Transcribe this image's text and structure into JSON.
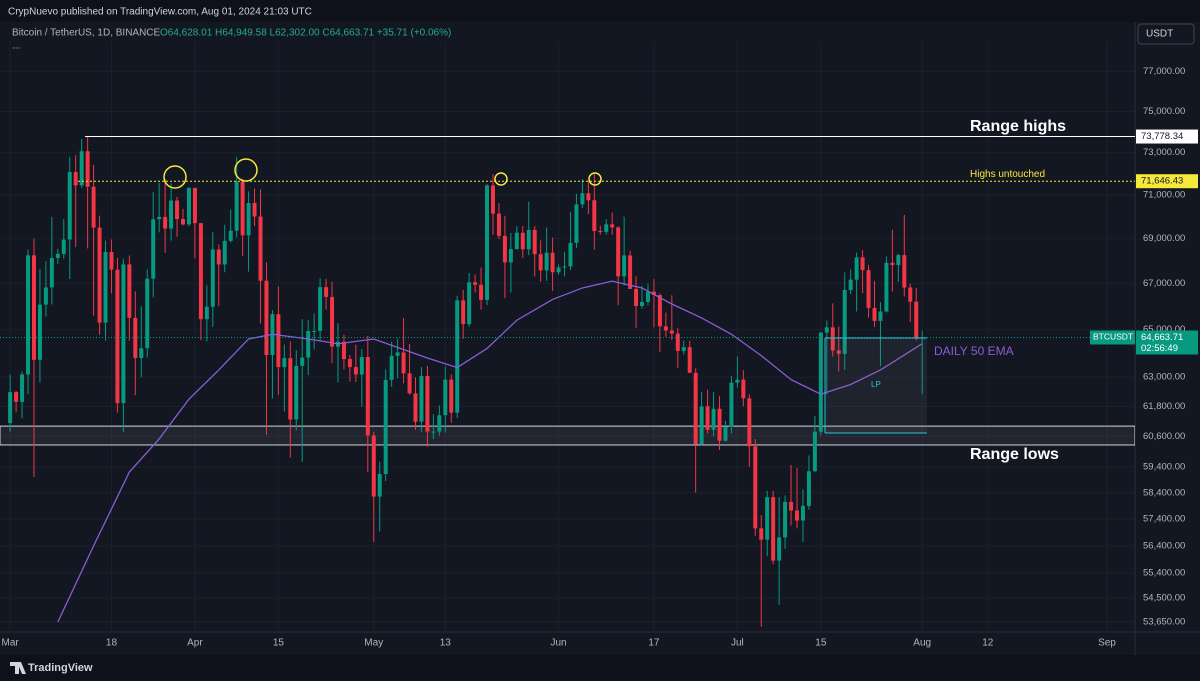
{
  "header": {
    "publisher": "CrypNuevo published on TradingView.com, Aug 01, 2024 21:03 UTC",
    "logo": "TradingView"
  },
  "chart_data": {
    "type": "candlestick",
    "title": "Bitcoin / TetherUS, 1D, BINANCE",
    "ohlc_legend": "O64,628.01 H64,949.58 L62,302.00 C64,663.71 +35.71 (+0.06%)",
    "more": "...",
    "currency": "USDT",
    "up_color": "#089981",
    "down_color": "#f23645",
    "log_scale": true,
    "ylim": [
      53300,
      78500
    ],
    "xlim": [
      -1.7,
      188.7
    ],
    "yticks": [
      {
        "value": 77000,
        "label": "77,000.00"
      },
      {
        "value": 75000,
        "label": "75,000.00"
      },
      {
        "value": 73000,
        "label": "73,000.00"
      },
      {
        "value": 71000,
        "label": "71,000.00"
      },
      {
        "value": 69000,
        "label": "69,000.00"
      },
      {
        "value": 67000,
        "label": "67,000.00"
      },
      {
        "value": 65000,
        "label": "65,000.00"
      },
      {
        "value": 63000,
        "label": "63,000.00"
      },
      {
        "value": 61800,
        "label": "61,800.00"
      },
      {
        "value": 60600,
        "label": "60,600.00"
      },
      {
        "value": 59400,
        "label": "59,400.00"
      },
      {
        "value": 58400,
        "label": "58,400.00"
      },
      {
        "value": 57400,
        "label": "57,400.00"
      },
      {
        "value": 56400,
        "label": "56,400.00"
      },
      {
        "value": 55400,
        "label": "55,400.00"
      },
      {
        "value": 54500,
        "label": "54,500.00"
      },
      {
        "value": 53650,
        "label": "53,650.00"
      }
    ],
    "xticks": [
      {
        "value": 0,
        "label": "Mar"
      },
      {
        "value": 17,
        "label": "18"
      },
      {
        "value": 31,
        "label": "Apr"
      },
      {
        "value": 45,
        "label": "15"
      },
      {
        "value": 61,
        "label": "May"
      },
      {
        "value": 73,
        "label": "13"
      },
      {
        "value": 92,
        "label": "Jun"
      },
      {
        "value": 108,
        "label": "17"
      },
      {
        "value": 122,
        "label": "Jul"
      },
      {
        "value": 136,
        "label": "15"
      },
      {
        "value": 153,
        "label": "Aug"
      },
      {
        "value": 164,
        "label": "12"
      },
      {
        "value": 184,
        "label": "Sep"
      }
    ],
    "open": [
      61130,
      62387,
      61987,
      63113,
      68245,
      63724,
      66074,
      66823,
      68124,
      68313,
      68955,
      72078,
      71452,
      73072,
      71388,
      69499,
      65300,
      68393,
      67609,
      61937,
      67840,
      65501,
      63796,
      64209,
      67211,
      69880,
      69988,
      69455,
      70744,
      69892,
      69645,
      71333,
      69702,
      65446,
      65980,
      68508,
      67837,
      68896,
      69360,
      71620,
      69146,
      70631,
      70006,
      67116,
      63924,
      65661,
      63419,
      63793,
      61277,
      63470,
      63818,
      64941,
      64942,
      66837,
      66408,
      64275,
      64481,
      63755,
      63420,
      63113,
      63841,
      60636,
      58253,
      59123,
      62889,
      63892,
      64031,
      63162,
      62334,
      61187,
      63051,
      60793,
      60793,
      61448,
      62901,
      61553,
      66256,
      65231,
      67051,
      66941,
      66279,
      71447,
      70136,
      69121,
      67929,
      68527,
      69265,
      68518,
      69394,
      68297,
      67578,
      68364,
      67491,
      67707,
      67752,
      68805,
      70568,
      71082,
      70758,
      69342,
      69306,
      69647,
      69508,
      67314,
      68241,
      66756,
      66012,
      66191,
      66640,
      66491,
      65140,
      64961,
      64829,
      64097,
      64253,
      63181,
      60277,
      61807,
      60865,
      61707,
      60428,
      60986,
      62773,
      62900,
      62134,
      60208,
      57051,
      56628,
      58231,
      55857,
      56715,
      58051,
      57725,
      57344,
      57899,
      59232,
      60788,
      64870,
      65097,
      64119,
      63974,
      66710,
      67164,
      68155,
      67585,
      65927,
      65372,
      65777,
      67912,
      67813,
      68255,
      66819,
      66201,
      64628.01
    ],
    "high": [
      63114,
      62433,
      63231,
      68499,
      69000,
      67641,
      67980,
      69990,
      68541,
      69887,
      72800,
      72890,
      73650,
      73777,
      72419,
      70043,
      68904,
      68956,
      68124,
      68100,
      68240,
      66650,
      65999,
      67622,
      71150,
      71561,
      71769,
      71552,
      70913,
      70355,
      71366,
      71342,
      69708,
      66914,
      69291,
      68725,
      69629,
      70326,
      72797,
      71758,
      71172,
      71305,
      71256,
      67931,
      65840,
      66867,
      64365,
      64499,
      64125,
      65450,
      65419,
      65695,
      67233,
      67199,
      67075,
      65275,
      64789,
      63923,
      64359,
      64174,
      64734,
      60780,
      59602,
      63320,
      64494,
      64610,
      65494,
      64390,
      62995,
      63421,
      63469,
      61490,
      61851,
      63450,
      63118,
      66454,
      66712,
      67459,
      67387,
      67700,
      71515,
      71980,
      70623,
      70041,
      69250,
      69563,
      69567,
      70687,
      69560,
      68920,
      69500,
      69044,
      67836,
      68409,
      70230,
      71063,
      71735,
      71625,
      71997,
      69584,
      69887,
      70195,
      69565,
      69999,
      68449,
      67316,
      66895,
      66983,
      67188,
      66556,
      65727,
      66482,
      65066,
      64525,
      64523,
      63370,
      62400,
      62487,
      62389,
      62225,
      61224,
      63058,
      63861,
      63288,
      62295,
      60498,
      57546,
      58475,
      58472,
      58236,
      58296,
      59470,
      59359,
      58526,
      59850,
      61420,
      64900,
      65388,
      66128,
      65133,
      67487,
      67620,
      68367,
      68480,
      67815,
      67102,
      66175,
      68200,
      69399,
      68318,
      70079,
      66987,
      66800,
      64949.58
    ],
    "low": [
      60777,
      61561,
      61320,
      62300,
      59005,
      62779,
      65551,
      66082,
      67861,
      68094,
      67194,
      68620,
      71333,
      68555,
      65600,
      64780,
      64533,
      66565,
      61555,
      60775,
      64529,
      62260,
      63000,
      63825,
      66385,
      69280,
      68359,
      68903,
      69076,
      69601,
      69562,
      68110,
      64550,
      64493,
      65113,
      66011,
      67491,
      68824,
      69043,
      68210,
      67518,
      69567,
      65254,
      60660,
      62134,
      62274,
      61600,
      59768,
      60833,
      59600,
      63090,
      64160,
      64500,
      65864,
      63589,
      62783,
      63322,
      62824,
      62800,
      61795,
      59191,
      56552,
      56937,
      58848,
      62599,
      62955,
      62746,
      62285,
      60866,
      60769,
      60187,
      60492,
      60632,
      60750,
      61142,
      61330,
      64613,
      65119,
      66601,
      65857,
      66060,
      69162,
      68977,
      66356,
      66600,
      68500,
      68128,
      68250,
      67300,
      67075,
      67118,
      66670,
      67386,
      67315,
      67589,
      68567,
      70390,
      70119,
      68500,
      69180,
      69165,
      69172,
      66051,
      66905,
      66764,
      65078,
      65900,
      66045,
      65094,
      64060,
      64693,
      64559,
      63379,
      63943,
      63180,
      58402,
      60239,
      60712,
      60606,
      60063,
      60383,
      60712,
      62571,
      61806,
      59400,
      56771,
      53485,
      56018,
      55723,
      54260,
      56289,
      57157,
      57052,
      56542,
      57756,
      59194,
      60632,
      62300,
      63855,
      63238,
      63300,
      66531,
      65777,
      66574,
      65512,
      65111,
      63456,
      65738,
      66640,
      67067,
      66428,
      65323,
      64532,
      62302
    ],
    "close": [
      62387,
      61987,
      63113,
      68245,
      63724,
      66074,
      66823,
      68124,
      68313,
      68955,
      72078,
      71452,
      73072,
      71388,
      69499,
      65300,
      68393,
      67609,
      61937,
      67840,
      65501,
      63796,
      64209,
      67211,
      69880,
      69988,
      69455,
      70744,
      69892,
      69645,
      71333,
      69702,
      65446,
      65980,
      68508,
      67837,
      68896,
      69360,
      71620,
      69146,
      70631,
      70006,
      67116,
      63924,
      65661,
      63419,
      63793,
      61277,
      63470,
      63818,
      64940,
      64942,
      66837,
      66407,
      64276,
      64481,
      63755,
      63419,
      63113,
      63841,
      60636,
      58254,
      59123,
      62889,
      63891,
      64031,
      63161,
      62334,
      61187,
      63049,
      60792,
      60793,
      61448,
      62901,
      61552,
      66256,
      65231,
      67051,
      66940,
      66278,
      71446,
      70136,
      69122,
      67929,
      68526,
      69265,
      68518,
      69394,
      68296,
      67578,
      68364,
      67491,
      67707,
      67751,
      68804,
      70567,
      71082,
      70757,
      69342,
      69306,
      69648,
      69508,
      67314,
      68241,
      66756,
      66012,
      66191,
      66640,
      66490,
      65140,
      64960,
      64828,
      64096,
      64253,
      63180,
      60277,
      61806,
      60864,
      61706,
      60427,
      60986,
      62772,
      62900,
      62135,
      60208,
      57050,
      56628,
      58231,
      55857,
      56714,
      58051,
      57725,
      57344,
      57899,
      59231,
      60787,
      64870,
      65097,
      64118,
      63974,
      66710,
      67163,
      68154,
      67585,
      65927,
      65372,
      65777,
      67912,
      67813,
      68255,
      66819,
      66201,
      64619,
      64663.71
    ],
    "ema": {
      "name": "DAILY 50 EMA",
      "color": "#8c5cd6",
      "x": [
        8,
        14,
        20,
        25,
        30,
        35,
        40,
        44,
        50,
        55,
        61,
        70,
        75,
        80,
        85,
        91,
        96,
        101,
        106,
        111,
        116,
        121,
        126,
        131,
        136,
        141,
        146,
        153
      ],
      "values": [
        53650,
        56400,
        59200,
        60500,
        62100,
        63300,
        64600,
        64800,
        64600,
        64400,
        64600,
        63800,
        63400,
        64200,
        65400,
        66300,
        66800,
        67100,
        66800,
        66100,
        65500,
        64800,
        63900,
        62900,
        62300,
        62700,
        63300,
        64400
      ]
    },
    "levels": [
      {
        "name": "Range highs",
        "value": 73778.34,
        "label": "73,778.34",
        "color": "#ffffff"
      },
      {
        "name": "Highs untouched",
        "value": 71646.43,
        "label": "71,646.43",
        "color": "#f5e93b"
      }
    ],
    "range_zone": {
      "name": "Range lows",
      "high": 61010,
      "low": 60260
    },
    "box_label": "LP",
    "last": {
      "symbol": "BTCUSDT",
      "value": 64663.71,
      "label": "64,663.71",
      "countdown": "02:56:49"
    }
  }
}
